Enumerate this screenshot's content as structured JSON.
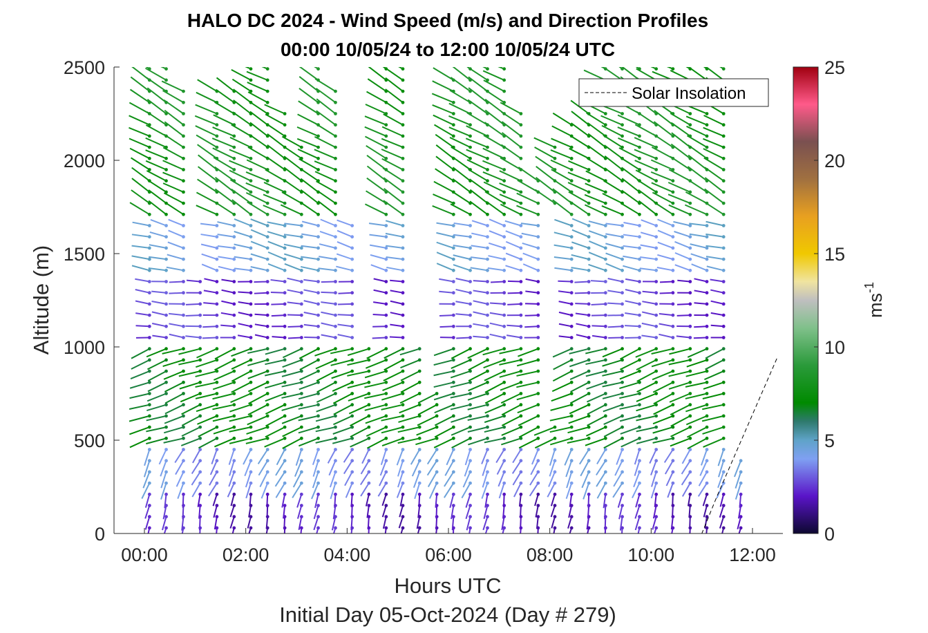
{
  "chart_data": {
    "type": "wind-barb-profile",
    "title_line1": "HALO DC 2024 - Wind Speed (m/s) and Direction Profiles",
    "title_line2": "00:00 10/05/24 to 12:00 10/05/24  UTC",
    "xlabel": "Hours UTC",
    "xsublabel": "Initial Day 05-Oct-2024 (Day # 279)",
    "ylabel": "Altitude (m)",
    "colorbar_label": "ms",
    "colorbar_label_exp": "-1",
    "legend_entry": "Solar Insolation",
    "legend_position": "top-right",
    "x_ticks": [
      "00:00",
      "02:00",
      "04:00",
      "06:00",
      "08:00",
      "10:00",
      "12:00"
    ],
    "x_tick_hours": [
      0,
      2,
      4,
      6,
      8,
      10,
      12
    ],
    "x_range_hours": [
      -0.6,
      12.6
    ],
    "y_ticks": [
      0,
      500,
      1000,
      1500,
      2000,
      2500
    ],
    "y_range_m": [
      0,
      2500
    ],
    "colorbar_ticks": [
      0,
      5,
      10,
      15,
      20,
      25
    ],
    "colorbar_range": [
      0,
      25
    ],
    "colormap_stops": [
      {
        "v": 0,
        "c": "#0d0830"
      },
      {
        "v": 2,
        "c": "#5a14c8"
      },
      {
        "v": 4,
        "c": "#7fa0f2"
      },
      {
        "v": 5,
        "c": "#5fa3c8"
      },
      {
        "v": 6,
        "c": "#2f7a6e"
      },
      {
        "v": 7,
        "c": "#008a00"
      },
      {
        "v": 9,
        "c": "#2a9a3a"
      },
      {
        "v": 11,
        "c": "#7fc08a"
      },
      {
        "v": 12.5,
        "c": "#bfbfbf"
      },
      {
        "v": 13.5,
        "c": "#f0e4a0"
      },
      {
        "v": 15,
        "c": "#f0c800"
      },
      {
        "v": 17,
        "c": "#e8a020"
      },
      {
        "v": 19,
        "c": "#a07040"
      },
      {
        "v": 21,
        "c": "#7a5050"
      },
      {
        "v": 23,
        "c": "#ff5a8a"
      },
      {
        "v": 25,
        "c": "#a00010"
      }
    ],
    "profile_times_hours": [
      0.1,
      0.43,
      0.77,
      1.1,
      1.43,
      1.77,
      2.1,
      2.43,
      2.77,
      3.1,
      3.43,
      3.77,
      4.1,
      4.43,
      4.77,
      5.1,
      5.43,
      5.77,
      6.1,
      6.43,
      6.77,
      7.1,
      7.43,
      7.77,
      8.1,
      8.43,
      8.77,
      9.1,
      9.43,
      9.77,
      10.1,
      10.43,
      10.77,
      11.1,
      11.43,
      11.77
    ],
    "profile_top_altitude_m": [
      2500,
      2500,
      2400,
      1900,
      2400,
      2400,
      2500,
      2500,
      2300,
      2100,
      2500,
      2400,
      1650,
      2300,
      2500,
      2500,
      1000,
      800,
      2450,
      2500,
      2500,
      2500,
      2300,
      1900,
      2100,
      2200,
      2250,
      2500,
      2500,
      2500,
      2500,
      2500,
      2500,
      2500,
      2500,
      400
    ],
    "gaps": [
      {
        "hours": [
          1.0,
          1.25
        ],
        "altitude_m": [
          1400,
          2100
        ]
      },
      {
        "hours": [
          4.3,
          4.65
        ],
        "altitude_m": [
          1050,
          2500
        ]
      },
      {
        "hours": [
          5.65,
          6.0
        ],
        "altitude_m": [
          800,
          2500
        ]
      },
      {
        "hours": [
          7.9,
          8.2
        ],
        "altitude_m": [
          600,
          1750
        ]
      }
    ],
    "wind_layers": [
      {
        "altitude_m": [
          0,
          250
        ],
        "speed_ms": 2,
        "direction_deg": 190
      },
      {
        "altitude_m": [
          250,
          500
        ],
        "speed_ms": 4,
        "direction_deg": 205
      },
      {
        "altitude_m": [
          500,
          1000
        ],
        "speed_ms": 7,
        "direction_deg": 250
      },
      {
        "altitude_m": [
          1000,
          1400
        ],
        "speed_ms": 2.5,
        "direction_deg": 275
      },
      {
        "altitude_m": [
          1400,
          1700
        ],
        "speed_ms": 4.5,
        "direction_deg": 285
      },
      {
        "altitude_m": [
          1700,
          2500
        ],
        "speed_ms": 8,
        "direction_deg": 300
      }
    ],
    "solar_insolation": {
      "style": "dashed",
      "color": "#000000",
      "x_hours": [
        -0.6,
        11.0,
        11.3,
        11.7,
        12.1,
        12.5
      ],
      "y_altitude_m": [
        0,
        0,
        200,
        450,
        700,
        950
      ]
    }
  }
}
